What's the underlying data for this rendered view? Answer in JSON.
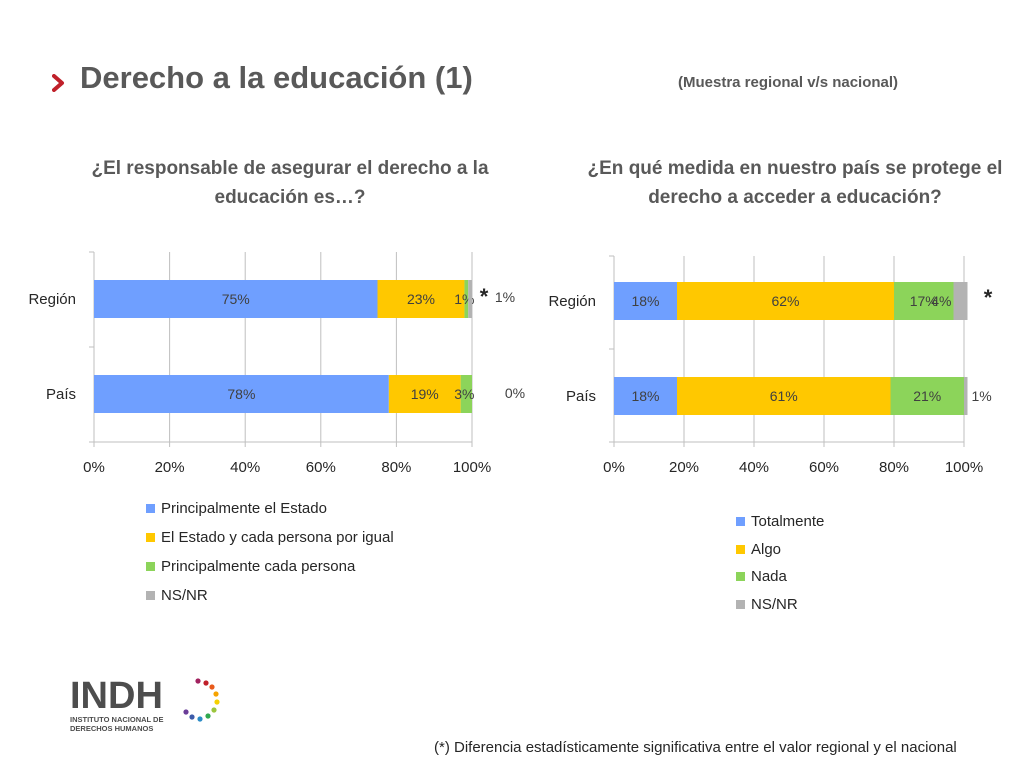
{
  "header": {
    "title": "Derecho a la educación (1)",
    "subtitle": "(Muestra regional v/s nacional)"
  },
  "footnote": "(*) Diferencia estadísticamente significativa entre el valor regional y el nacional",
  "logo": {
    "text": "INDH",
    "line1": "INSTITUTO NACIONAL DE",
    "line2": "DERECHOS HUMANOS"
  },
  "colors": {
    "series1": "#6F9FFF",
    "series2": "#FFC800",
    "series3": "#8CD45A",
    "series4": "#B3B3B3",
    "accent": "#C0202A",
    "grid": "#BFBFBF"
  },
  "chart_data": [
    {
      "type": "bar",
      "orientation": "horizontal",
      "stacked": true,
      "title": "¿El responsable de asegurar el derecho a la educación es…?",
      "categories": [
        "Región",
        "País"
      ],
      "series": [
        {
          "name": "Principalmente el Estado",
          "values": [
            75,
            78
          ],
          "labels": [
            "75%",
            "78%"
          ]
        },
        {
          "name": "El Estado y cada persona por igual",
          "values": [
            23,
            19
          ],
          "labels": [
            "23%",
            "19%"
          ]
        },
        {
          "name": "Principalmente cada persona",
          "values": [
            1,
            3
          ],
          "labels": [
            "1%",
            "3%"
          ]
        },
        {
          "name": "NS/NR",
          "values": [
            1,
            0
          ],
          "labels": [
            "1%",
            "0%"
          ]
        }
      ],
      "significance_marker": "*",
      "significant_category": "Región",
      "xlim": [
        0,
        100
      ],
      "xticks": [
        "0%",
        "20%",
        "40%",
        "60%",
        "80%",
        "100%"
      ],
      "grid": true,
      "legend_position": "bottom"
    },
    {
      "type": "bar",
      "orientation": "horizontal",
      "stacked": true,
      "title": "¿En qué medida en nuestro país se protege el derecho a acceder a educación?",
      "categories": [
        "Región",
        "País"
      ],
      "series": [
        {
          "name": "Totalmente",
          "values": [
            18,
            18
          ],
          "labels": [
            "18%",
            "18%"
          ]
        },
        {
          "name": "Algo",
          "values": [
            62,
            61
          ],
          "labels": [
            "62%",
            "61%"
          ]
        },
        {
          "name": "Nada",
          "values": [
            17,
            21
          ],
          "labels": [
            "17%",
            "21%"
          ]
        },
        {
          "name": "NS/NR",
          "values": [
            4,
            1
          ],
          "labels": [
            "4%",
            "1%"
          ]
        }
      ],
      "significance_marker": "*",
      "significant_category": "Región",
      "xlim": [
        0,
        100
      ],
      "xticks": [
        "0%",
        "20%",
        "40%",
        "60%",
        "80%",
        "100%"
      ],
      "grid": true,
      "legend_position": "bottom"
    }
  ]
}
